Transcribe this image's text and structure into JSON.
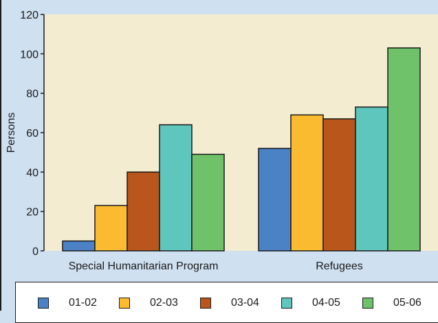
{
  "chart_data": {
    "type": "bar",
    "ylabel": "Persons",
    "ylim": [
      0,
      120
    ],
    "yticks": [
      0,
      20,
      40,
      60,
      80,
      100,
      120
    ],
    "categories": [
      "Special Humanitarian Program",
      "Refugees"
    ],
    "series": [
      {
        "name": "01-02",
        "color": "#4a82c5",
        "values": [
          5,
          52
        ]
      },
      {
        "name": "02-03",
        "color": "#fbbb30",
        "values": [
          23,
          69
        ]
      },
      {
        "name": "03-04",
        "color": "#b8561c",
        "values": [
          40,
          67
        ]
      },
      {
        "name": "04-05",
        "color": "#5ec6bd",
        "values": [
          64,
          73
        ]
      },
      {
        "name": "05-06",
        "color": "#6fc26a",
        "values": [
          49,
          103
        ]
      }
    ],
    "grid": false,
    "legend_position": "bottom"
  },
  "colors": {
    "page_background": "#cfe0f0",
    "plot_background": "#f3ecd0",
    "outline": "#1a1a1a"
  }
}
